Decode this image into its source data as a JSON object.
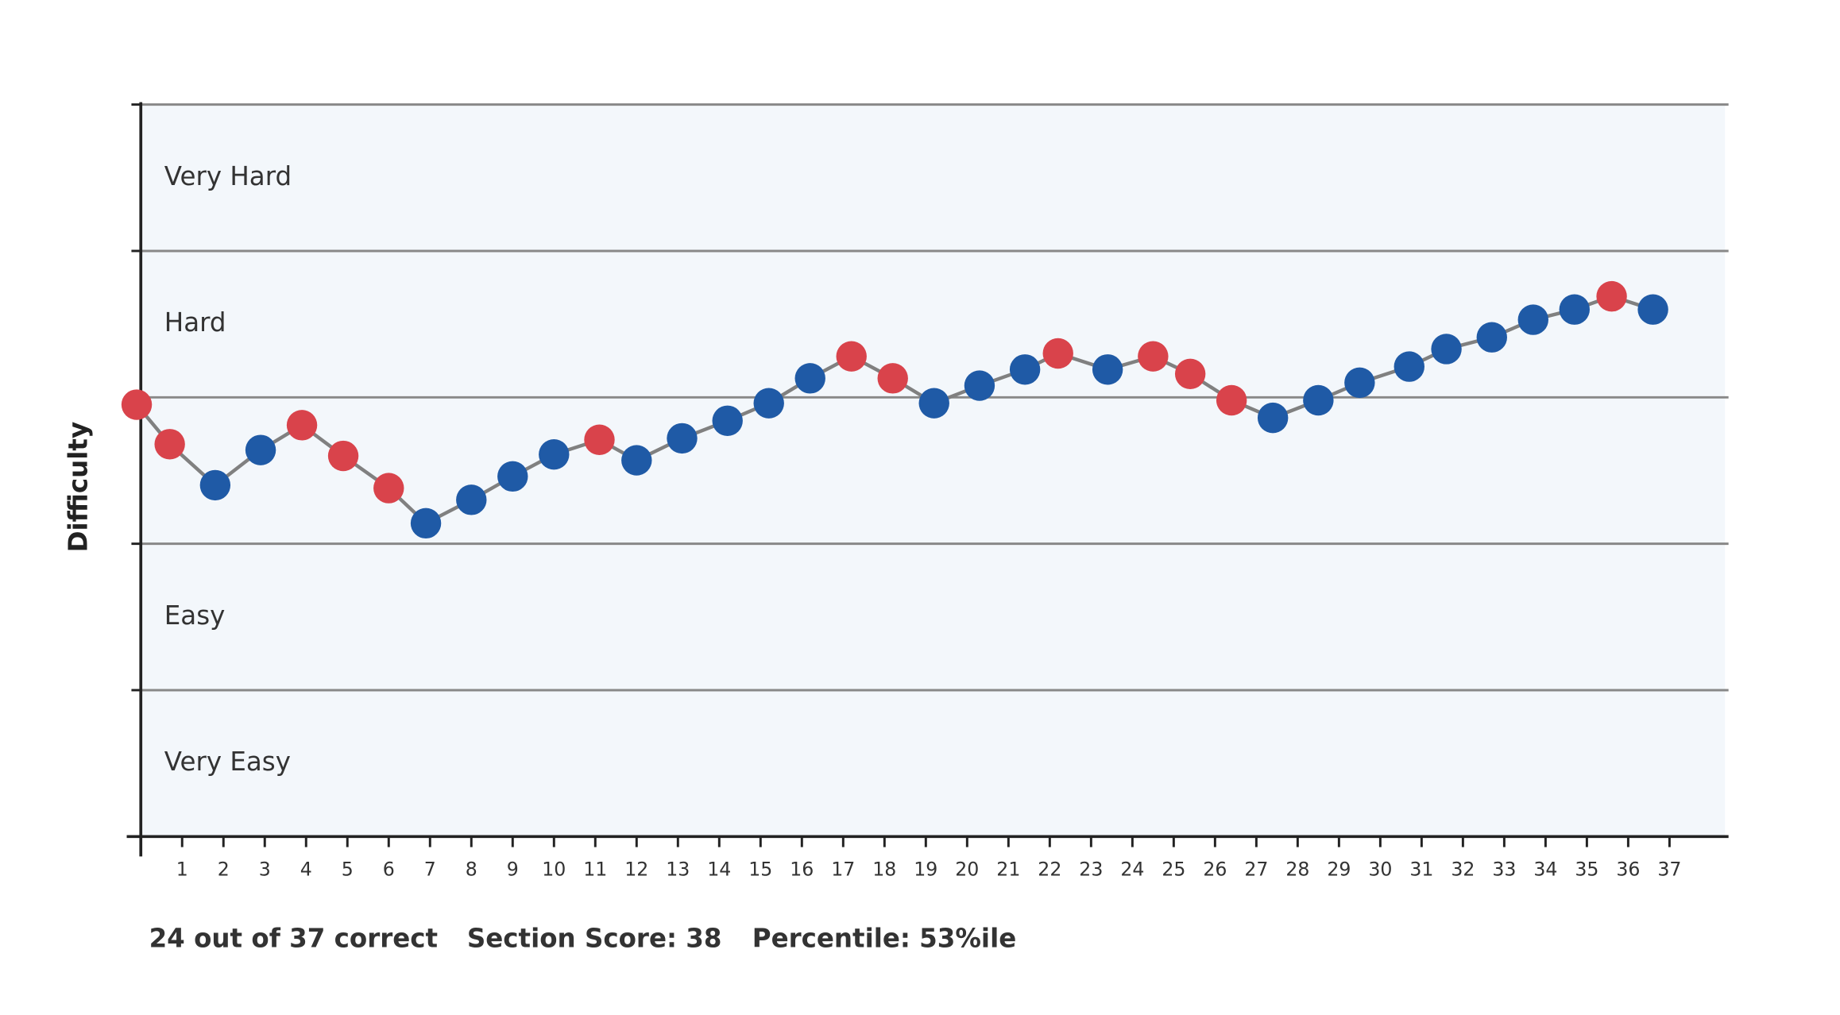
{
  "chart_data": {
    "type": "line",
    "y_label": "Difficulty",
    "bands": [
      {
        "label": "Very Hard",
        "from": 4,
        "to": 5
      },
      {
        "label": "Hard",
        "from": 3,
        "to": 4
      },
      {
        "label": "Easy",
        "from": 1,
        "to": 2
      },
      {
        "label": "Very Easy",
        "from": 0,
        "to": 1
      }
    ],
    "x": [
      -0.1,
      0.7,
      1.8,
      2.9,
      3.9,
      4.9,
      6.0,
      6.9,
      8.0,
      9.0,
      10.0,
      11.1,
      12.0,
      13.1,
      14.2,
      15.2,
      16.2,
      17.2,
      18.2,
      19.2,
      20.3,
      21.4,
      22.2,
      23.4,
      24.5,
      25.4,
      26.4,
      27.4,
      28.5,
      29.5,
      30.7,
      31.6,
      32.7,
      33.7,
      34.7,
      35.6,
      36.6
    ],
    "values": [
      2.95,
      2.68,
      2.4,
      2.64,
      2.81,
      2.6,
      2.38,
      2.14,
      2.3,
      2.46,
      2.61,
      2.71,
      2.57,
      2.72,
      2.84,
      2.96,
      3.13,
      3.28,
      3.13,
      2.96,
      3.08,
      3.19,
      3.3,
      3.19,
      3.28,
      3.16,
      2.98,
      2.86,
      2.98,
      3.1,
      3.21,
      3.33,
      3.41,
      3.53,
      3.6,
      3.69,
      3.6
    ],
    "correct": [
      false,
      false,
      true,
      true,
      false,
      false,
      false,
      true,
      true,
      true,
      true,
      false,
      true,
      true,
      true,
      true,
      true,
      false,
      false,
      true,
      true,
      true,
      false,
      true,
      false,
      false,
      false,
      true,
      true,
      true,
      true,
      true,
      true,
      true,
      true,
      false,
      true
    ],
    "colors": {
      "correct": "#1f5aa6",
      "incorrect": "#d9434b",
      "line": "#808080",
      "band": "#f3f7fb",
      "grid": "#888888"
    },
    "xlim": [
      0,
      38.4
    ],
    "ylim": [
      0,
      5
    ],
    "xticks": [
      1,
      2,
      3,
      4,
      5,
      6,
      7,
      8,
      9,
      10,
      11,
      12,
      13,
      14,
      15,
      16,
      17,
      18,
      19,
      20,
      21,
      22,
      23,
      24,
      25,
      26,
      27,
      28,
      29,
      30,
      31,
      32,
      33,
      34,
      35,
      36,
      37
    ],
    "yticks": [
      1,
      2,
      3,
      4,
      5
    ],
    "grid": true,
    "footer": [
      "24 out of 37 correct",
      "Section Score: 38",
      "Percentile: 53%ile"
    ]
  }
}
